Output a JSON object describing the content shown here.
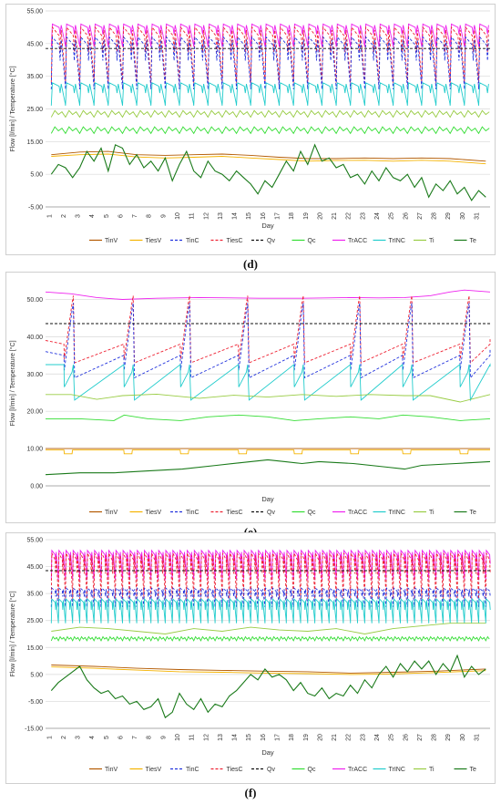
{
  "figure": {
    "legend": [
      {
        "name": "TinV",
        "color": "#b35900",
        "dash": "solid"
      },
      {
        "name": "TiesV",
        "color": "#f5b300",
        "dash": "solid"
      },
      {
        "name": "TinC",
        "color": "#2233dd",
        "dash": "dashed"
      },
      {
        "name": "TiesC",
        "color": "#ee2233",
        "dash": "dashed"
      },
      {
        "name": "Qv",
        "color": "#111111",
        "dash": "dashed"
      },
      {
        "name": "Qc",
        "color": "#33dd33",
        "dash": "solid"
      },
      {
        "name": "TrACC",
        "color": "#ee22ee",
        "dash": "solid"
      },
      {
        "name": "TrINC",
        "color": "#22cccc",
        "dash": "solid"
      },
      {
        "name": "Ti",
        "color": "#99cc44",
        "dash": "solid"
      },
      {
        "name": "Te",
        "color": "#1a7a1a",
        "dash": "solid"
      }
    ]
  },
  "chart_data": [
    {
      "panel": "(d)",
      "type": "line",
      "ylabel": "Flow [l/min] / Temperature [°C]",
      "xlabel": "Day",
      "ylim": [
        -5,
        55
      ],
      "yticks": [
        "55.00",
        "45.00",
        "35.00",
        "25.00",
        "15.00",
        "5.00",
        "-5.00"
      ],
      "ytick_values": [
        55,
        45,
        35,
        25,
        15,
        5,
        -5
      ],
      "xticks": [
        "1",
        "2",
        "3",
        "4",
        "5",
        "6",
        "7",
        "8",
        "9",
        "10",
        "11",
        "12",
        "13",
        "14",
        "15",
        "16",
        "17",
        "18",
        "19",
        "20",
        "21",
        "22",
        "23",
        "24",
        "25",
        "26",
        "27",
        "28",
        "29",
        "30",
        "31"
      ],
      "grid": true,
      "legend_position": "bottom",
      "series": [
        {
          "name": "TrACC",
          "mode": "cycle",
          "period": 1,
          "low": 44,
          "high": 51,
          "shape": "saw"
        },
        {
          "name": "TiesC",
          "mode": "cycle",
          "period": 1,
          "low": 33,
          "high": 50,
          "shape": "saw"
        },
        {
          "name": "Qv",
          "mode": "flat",
          "value": 43.5
        },
        {
          "name": "TinC",
          "mode": "cycle",
          "period": 1,
          "low": 31,
          "high": 47,
          "shape": "saw"
        },
        {
          "name": "TrINC",
          "mode": "cycle",
          "period": 1,
          "low": 26,
          "high": 33,
          "shape": "saw"
        },
        {
          "name": "Ti",
          "mode": "cycle",
          "period": 1,
          "low": 22.5,
          "high": 24.5,
          "shape": "wave"
        },
        {
          "name": "Qc",
          "mode": "cycle",
          "period": 1,
          "low": 17.5,
          "high": 19.5,
          "shape": "wave"
        },
        {
          "name": "TinV",
          "mode": "points",
          "x": [
            1,
            3,
            5,
            7,
            9,
            11,
            13,
            15,
            17,
            19,
            21,
            23,
            25,
            27,
            29,
            31.5
          ],
          "y": [
            11,
            11.8,
            12,
            11,
            10.8,
            11,
            11.2,
            10.8,
            10.2,
            9.8,
            9.8,
            10,
            9.8,
            10,
            9.8,
            9
          ]
        },
        {
          "name": "TiesV",
          "mode": "points",
          "x": [
            1,
            3,
            5,
            7,
            9,
            11,
            13,
            15,
            17,
            19,
            21,
            23,
            25,
            27,
            29,
            31.5
          ],
          "y": [
            10.5,
            11,
            11.2,
            10.3,
            10,
            10.2,
            10.5,
            10,
            9.5,
            9,
            9.2,
            9.3,
            9,
            9.3,
            9,
            8.2
          ]
        },
        {
          "name": "Te",
          "mode": "points",
          "x": [
            1,
            1.5,
            2,
            2.5,
            3,
            3.5,
            4,
            4.5,
            5,
            5.5,
            6,
            6.5,
            7,
            7.5,
            8,
            8.5,
            9,
            9.5,
            10,
            10.5,
            11,
            11.5,
            12,
            12.5,
            13,
            13.5,
            14,
            14.5,
            15,
            15.5,
            16,
            16.5,
            17,
            17.5,
            18,
            18.5,
            19,
            19.5,
            20,
            20.5,
            21,
            21.5,
            22,
            22.5,
            23,
            23.5,
            24,
            24.5,
            25,
            25.5,
            26,
            26.5,
            27,
            27.5,
            28,
            28.5,
            29,
            29.5,
            30,
            30.5,
            31,
            31.5
          ],
          "y": [
            5,
            8,
            7,
            4,
            7,
            12,
            9,
            13,
            6,
            14,
            13,
            8,
            11,
            7,
            9,
            6,
            10,
            3,
            8,
            12,
            6,
            4,
            9,
            6,
            5,
            3,
            6,
            4,
            2,
            -1,
            3,
            1,
            5,
            9,
            6,
            12,
            8,
            14,
            9,
            10,
            7,
            8,
            4,
            5,
            2,
            6,
            3,
            7,
            4,
            3,
            5,
            1,
            4,
            -2,
            2,
            0,
            3,
            -1,
            1,
            -3,
            0,
            -2
          ]
        }
      ]
    },
    {
      "panel": "(e)",
      "type": "line",
      "ylabel": "Flow [l/min] / Temperature [°C]",
      "xlabel": "Day",
      "ylim": [
        0,
        55
      ],
      "yticks": [
        "50.00",
        "40.00",
        "30.00",
        "20.00",
        "10.00",
        "0.00"
      ],
      "ytick_values": [
        50,
        40,
        30,
        20,
        10,
        0
      ],
      "xticks": [],
      "grid": true,
      "legend_position": "bottom",
      "series": [
        {
          "name": "TrACC",
          "mode": "points",
          "x": [
            0,
            3,
            6,
            9,
            13,
            18,
            25,
            30,
            33,
            36,
            39,
            42,
            45,
            47.3,
            49,
            52
          ],
          "y": [
            52,
            51.5,
            50.5,
            50,
            50.3,
            50.5,
            50.3,
            50.3,
            50.4,
            50.5,
            50.4,
            50.5,
            51,
            52,
            52.5,
            52
          ]
        },
        {
          "name": "TiesC",
          "mode": "drops",
          "starts": [
            2.2,
            9.2,
            15.8,
            22.6,
            29.1,
            35.7,
            41.8,
            48.5
          ],
          "pre": 38,
          "base": 34,
          "peak": 51,
          "after_base": 33,
          "start": 39,
          "end": 39.5
        },
        {
          "name": "TinC",
          "mode": "drops",
          "starts": [
            2.2,
            9.2,
            15.8,
            22.6,
            29.1,
            35.7,
            41.8,
            48.5
          ],
          "pre": 35,
          "base": 31,
          "peak": 49,
          "after_base": 29,
          "start": 36,
          "end": 36.5
        },
        {
          "name": "Qv",
          "mode": "flat",
          "value": 43.5
        },
        {
          "name": "TrINC",
          "mode": "drops",
          "starts": [
            2.2,
            9.2,
            15.8,
            22.6,
            29.1,
            35.7,
            41.8,
            48.5
          ],
          "pre": 32.5,
          "base": 26.5,
          "peak": 32.5,
          "after_base": 23,
          "start": 32.5,
          "end": 32
        },
        {
          "name": "Ti",
          "mode": "points",
          "x": [
            0,
            3,
            6,
            9,
            13,
            18,
            22,
            26,
            30,
            34,
            38,
            42,
            45,
            48.5,
            52
          ],
          "y": [
            24.5,
            24.5,
            23.2,
            24.2,
            24.6,
            23.5,
            24.3,
            23.8,
            24.5,
            24,
            24.5,
            24.2,
            24.2,
            22.5,
            24.5
          ]
        },
        {
          "name": "Qc",
          "mode": "points",
          "x": [
            0,
            4,
            8,
            9.2,
            12,
            15.8,
            19,
            22.6,
            26,
            29.1,
            32,
            35.7,
            39,
            41.8,
            45,
            48.5,
            52
          ],
          "y": [
            18,
            18,
            17.5,
            19,
            18,
            17.5,
            18.5,
            19,
            18.5,
            17.5,
            18,
            18.5,
            18,
            19,
            18.5,
            17.5,
            18
          ]
        },
        {
          "name": "TinV",
          "mode": "flat",
          "value": 10
        },
        {
          "name": "TiesV",
          "mode": "step",
          "starts": [
            2.2,
            9.2,
            15.8,
            22.6,
            29.1,
            35.7,
            41.8,
            48.5
          ],
          "low": 8.6,
          "high": 9.6
        },
        {
          "name": "Te",
          "mode": "points",
          "x": [
            0,
            4,
            8,
            12,
            16,
            20,
            24,
            26,
            28,
            30,
            32,
            36,
            40,
            42,
            44,
            48,
            52
          ],
          "y": [
            3,
            3.5,
            3.5,
            4,
            4.5,
            5.5,
            6.5,
            7,
            6.5,
            6,
            6.5,
            6,
            5,
            4.5,
            5.5,
            6,
            6.5
          ]
        }
      ]
    },
    {
      "panel": "(f)",
      "type": "line",
      "ylabel": "Flow [l/min] / Temperature [°C]",
      "xlabel": "Day",
      "ylim": [
        -15,
        55
      ],
      "yticks": [
        "55.00",
        "45.00",
        "35.00",
        "25.00",
        "15.00",
        "5.00",
        "-5.00",
        "-15.00"
      ],
      "ytick_values": [
        55,
        45,
        35,
        25,
        15,
        5,
        -5,
        -15
      ],
      "xticks": [
        "1",
        "2",
        "3",
        "4",
        "5",
        "6",
        "7",
        "8",
        "9",
        "10",
        "11",
        "12",
        "13",
        "14",
        "15",
        "16",
        "17",
        "18",
        "19",
        "20",
        "21",
        "22",
        "23",
        "24",
        "25",
        "26",
        "27",
        "28",
        "29",
        "30",
        "31"
      ],
      "grid": true,
      "legend_position": "bottom",
      "series": [
        {
          "name": "TrACC",
          "mode": "cycle",
          "period": 0.5,
          "low": 40,
          "high": 51,
          "shape": "saw"
        },
        {
          "name": "TiesC",
          "mode": "cycle",
          "period": 0.5,
          "low": 33,
          "high": 50,
          "shape": "saw"
        },
        {
          "name": "Qv",
          "mode": "flat",
          "value": 43.5
        },
        {
          "name": "TinC",
          "mode": "cycle",
          "period": 0.5,
          "low": 30,
          "high": 37,
          "shape": "saw"
        },
        {
          "name": "TrINC",
          "mode": "cycle",
          "period": 0.5,
          "low": 24,
          "high": 33,
          "shape": "saw"
        },
        {
          "name": "Ti",
          "mode": "points",
          "x": [
            1,
            3,
            5,
            7,
            9,
            11,
            13,
            15,
            17,
            19,
            21,
            23,
            25,
            27,
            29,
            31.5
          ],
          "y": [
            21,
            22.5,
            22,
            21,
            20,
            22,
            21,
            22.5,
            21.5,
            21,
            22,
            20,
            22,
            23,
            24,
            24
          ]
        },
        {
          "name": "Qc",
          "mode": "cycle",
          "period": 0.5,
          "low": 17.5,
          "high": 19,
          "shape": "wave"
        },
        {
          "name": "TinV",
          "mode": "points",
          "x": [
            1,
            4,
            7,
            10,
            13,
            16,
            19,
            22,
            25,
            28,
            31.5
          ],
          "y": [
            8.5,
            8,
            7.3,
            6.8,
            6.5,
            6.2,
            6,
            5.5,
            5.8,
            6.2,
            7
          ]
        },
        {
          "name": "TiesV",
          "mode": "points",
          "x": [
            1,
            4,
            7,
            10,
            13,
            16,
            19,
            22,
            25,
            28,
            31.5
          ],
          "y": [
            7.8,
            7.3,
            6.6,
            6,
            5.8,
            5.5,
            5.3,
            5,
            5.2,
            5.7,
            6.4
          ]
        },
        {
          "name": "Te",
          "mode": "points",
          "x": [
            1,
            1.5,
            2,
            2.5,
            3,
            3.5,
            4,
            4.5,
            5,
            5.5,
            6,
            6.5,
            7,
            7.5,
            8,
            8.5,
            9,
            9.5,
            10,
            10.5,
            11,
            11.5,
            12,
            12.5,
            13,
            13.5,
            14,
            14.5,
            15,
            15.5,
            16,
            16.5,
            17,
            17.5,
            18,
            18.5,
            19,
            19.5,
            20,
            20.5,
            21,
            21.5,
            22,
            22.5,
            23,
            23.5,
            24,
            24.5,
            25,
            25.5,
            26,
            26.5,
            27,
            27.5,
            28,
            28.5,
            29,
            29.5,
            30,
            30.5,
            31,
            31.5
          ],
          "y": [
            -1,
            2,
            4,
            6,
            8,
            3,
            0,
            -2,
            -1,
            -4,
            -3,
            -6,
            -5,
            -8,
            -7,
            -4,
            -11,
            -9,
            -2,
            -6,
            -8,
            -4,
            -9,
            -6,
            -7,
            -3,
            -1,
            2,
            5,
            3,
            7,
            4,
            5,
            3,
            -1,
            2,
            -2,
            -3,
            0,
            -4,
            -2,
            -3,
            1,
            -2,
            3,
            0,
            5,
            8,
            4,
            9,
            6,
            10,
            7,
            10,
            5,
            9,
            6,
            12,
            4,
            8,
            5,
            7
          ]
        }
      ]
    }
  ],
  "captions": [
    "(d)",
    "(e)",
    "(f)"
  ]
}
